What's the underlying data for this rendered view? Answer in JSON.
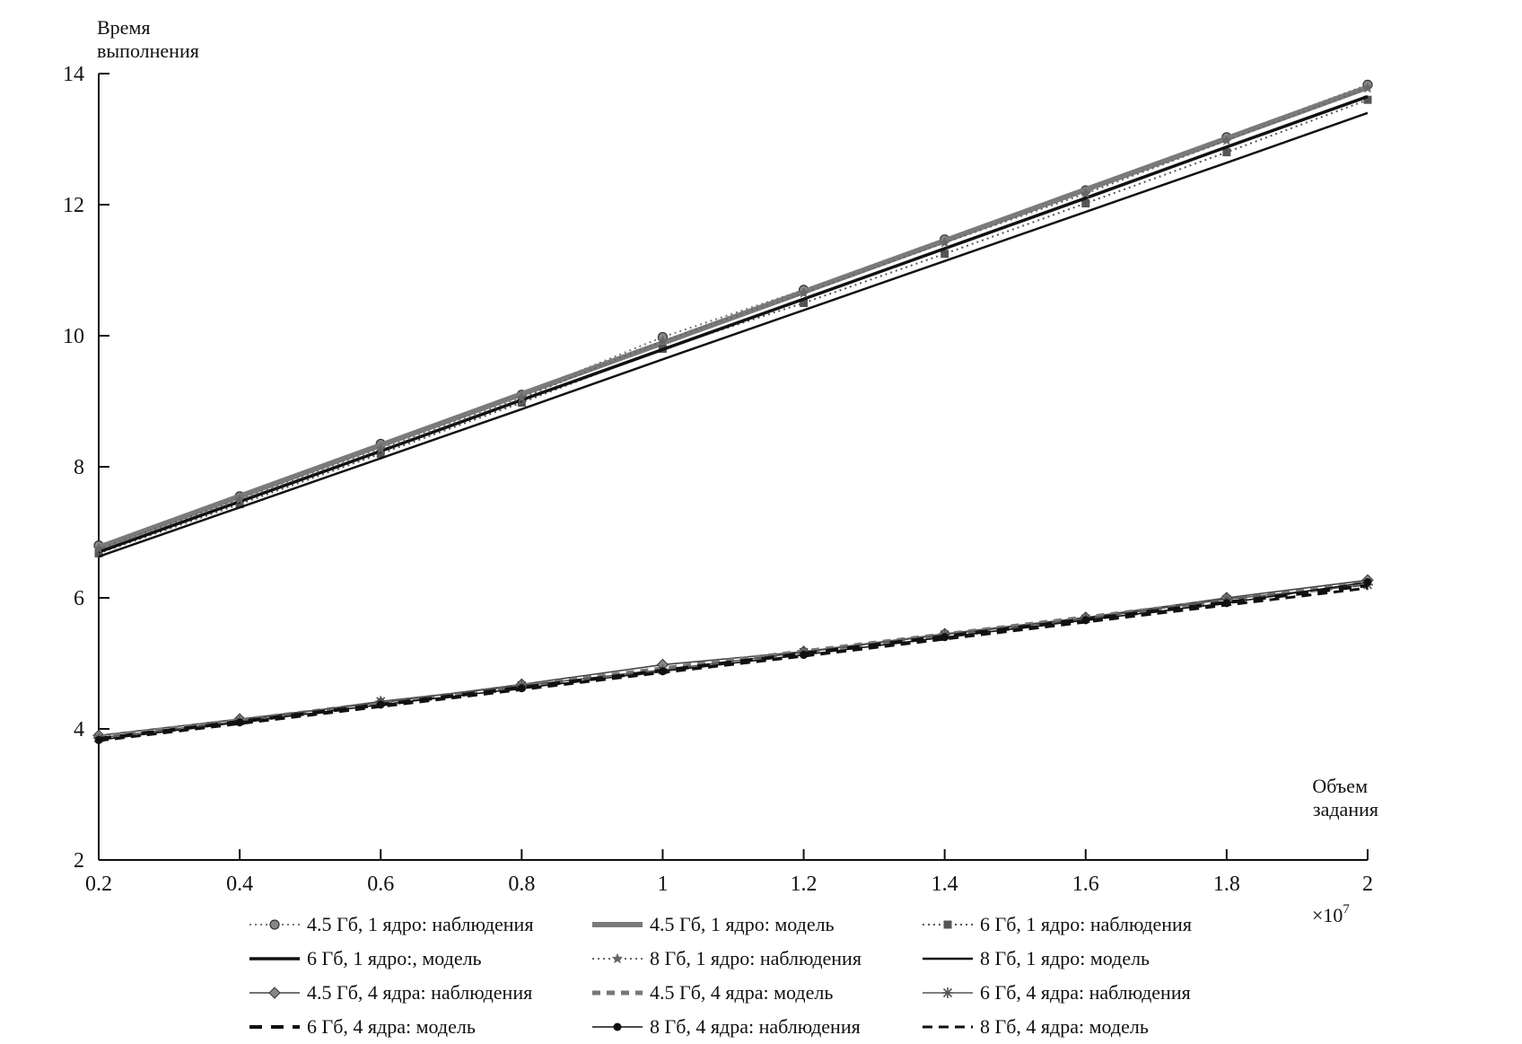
{
  "chart_data": {
    "type": "line",
    "title": "",
    "ylabel_lines": [
      "Время",
      "выполнения"
    ],
    "xlabel_lines": [
      "Объем",
      "задания"
    ],
    "x_multiplier": "×10",
    "x_multiplier_exp": "7",
    "xlim": [
      0.2,
      2
    ],
    "ylim": [
      2,
      14
    ],
    "x_ticks": [
      0.2,
      0.4,
      0.6,
      0.8,
      1,
      1.2,
      1.4,
      1.6,
      1.8,
      2
    ],
    "y_ticks": [
      2,
      4,
      6,
      8,
      10,
      12,
      14
    ],
    "grid": false,
    "legend_position": "bottom",
    "x": [
      0.2,
      0.4,
      0.6,
      0.8,
      1.0,
      1.2,
      1.4,
      1.6,
      1.8,
      2.0
    ],
    "series": [
      {
        "name": "4.5 Гб, 1 ядро: наблюдения",
        "style": "dotted",
        "color": "#777777",
        "marker": "circle",
        "values": [
          6.8,
          7.55,
          8.35,
          9.1,
          9.98,
          10.7,
          11.47,
          12.22,
          13.03,
          13.83
        ]
      },
      {
        "name": "4.5 Гб, 1 ядро: модель",
        "style": "thick",
        "color": "#7a7a7a",
        "marker": "none",
        "values": [
          6.77,
          7.55,
          8.33,
          9.11,
          9.89,
          10.67,
          11.45,
          12.23,
          13.01,
          13.79
        ]
      },
      {
        "name": "6 Гб, 1 ядро: наблюдения",
        "style": "dotted",
        "color": "#555555",
        "marker": "square",
        "values": [
          6.68,
          7.43,
          8.2,
          8.98,
          9.8,
          10.5,
          11.25,
          12.02,
          12.8,
          13.6
        ]
      },
      {
        "name": "6 Гб, 1 ядро:, модель",
        "style": "solid-thick",
        "color": "#111111",
        "marker": "none",
        "values": [
          6.7,
          7.47,
          8.24,
          9.02,
          9.79,
          10.56,
          11.33,
          12.1,
          12.88,
          13.65
        ]
      },
      {
        "name": "8 Гб, 1 ядро: наблюдения",
        "style": "dotted",
        "color": "#666666",
        "marker": "star",
        "values": [
          6.75,
          7.5,
          8.27,
          9.05,
          9.92,
          10.65,
          11.42,
          12.17,
          12.98,
          13.78
        ]
      },
      {
        "name": "8 Гб, 1 ядро: модель",
        "style": "solid",
        "color": "#111111",
        "marker": "none",
        "values": [
          6.63,
          7.38,
          8.13,
          8.88,
          9.64,
          10.39,
          11.14,
          11.89,
          12.64,
          13.4
        ]
      },
      {
        "name": "4.5 Гб, 4 ядра: наблюдения",
        "style": "solid-thin",
        "color": "#444444",
        "marker": "diamond",
        "values": [
          3.9,
          4.15,
          4.4,
          4.68,
          4.98,
          5.18,
          5.45,
          5.7,
          6.0,
          6.27
        ]
      },
      {
        "name": "4.5 Гб, 4 ядра: модель",
        "style": "dashed-gray",
        "color": "#777777",
        "marker": "none",
        "values": [
          3.87,
          4.13,
          4.39,
          4.65,
          4.92,
          5.18,
          5.44,
          5.7,
          5.96,
          6.22
        ]
      },
      {
        "name": "6 Гб, 4 ядра: наблюдения",
        "style": "solid-thin",
        "color": "#555555",
        "marker": "asterisk",
        "values": [
          3.86,
          4.12,
          4.42,
          4.66,
          4.9,
          5.17,
          5.44,
          5.68,
          5.98,
          6.2
        ]
      },
      {
        "name": "6 Гб, 4 ядра: модель",
        "style": "long-dash",
        "color": "#111111",
        "marker": "none",
        "values": [
          3.85,
          4.11,
          4.37,
          4.63,
          4.89,
          5.15,
          5.41,
          5.67,
          5.93,
          6.19
        ]
      },
      {
        "name": "8 Гб, 4 ядра: наблюдения",
        "style": "solid-thin",
        "color": "#111111",
        "marker": "dot",
        "values": [
          3.83,
          4.1,
          4.37,
          4.62,
          4.88,
          5.13,
          5.4,
          5.66,
          5.92,
          6.24
        ]
      },
      {
        "name": "8 Гб, 4 ядра: модель",
        "style": "dashed",
        "color": "#111111",
        "marker": "none",
        "values": [
          3.82,
          4.08,
          4.34,
          4.6,
          4.86,
          5.11,
          5.37,
          5.63,
          5.89,
          6.15
        ]
      }
    ]
  }
}
